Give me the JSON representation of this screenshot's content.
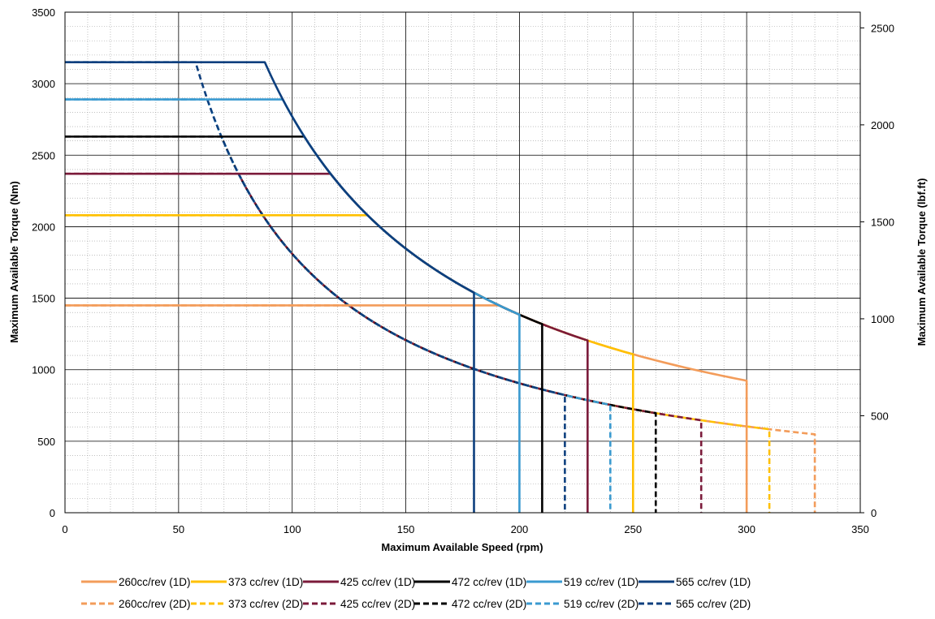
{
  "chart_data": {
    "type": "line",
    "title": "",
    "xlabel": "Maximum Available Speed (rpm)",
    "ylabel": "Maximum Available Torque (Nm)",
    "y2label": "Maximum Available Torque (lbf.ft)",
    "xlim": [
      0,
      350
    ],
    "ylim": [
      0,
      3500
    ],
    "y2lim": [
      0,
      2581
    ],
    "x_ticks": [
      "0",
      "50",
      "100",
      "150",
      "200",
      "250",
      "300",
      "350"
    ],
    "y_ticks": [
      "0",
      "500",
      "1000",
      "1500",
      "2000",
      "2500",
      "3000",
      "3500"
    ],
    "y2_ticks": [
      "0",
      "500",
      "1000",
      "1500",
      "2000",
      "2500"
    ],
    "x_tick_values": [
      0,
      50,
      100,
      150,
      200,
      250,
      300,
      350
    ],
    "y_tick_values": [
      0,
      500,
      1000,
      1500,
      2000,
      2500,
      3000,
      3500
    ],
    "y2_tick_values": [
      0,
      500,
      1000,
      1500,
      2000,
      2500
    ],
    "grid": "major solid, minor dotted",
    "legend_position": "bottom",
    "series": [
      {
        "name": "260cc/rev (1D)",
        "color": "#F39C5A",
        "style": "solid",
        "torque_max": 1450,
        "speed_max": 300,
        "power_const_nm_rpm": 277000
      },
      {
        "name": "373 cc/rev (1D)",
        "color": "#FFC000",
        "style": "solid",
        "torque_max": 2080,
        "speed_max": 250,
        "power_const_nm_rpm": 277000
      },
      {
        "name": "425 cc/rev (1D)",
        "color": "#7B1A3A",
        "style": "solid",
        "torque_max": 2370,
        "speed_max": 230,
        "power_const_nm_rpm": 277000
      },
      {
        "name": "472 cc/rev (1D)",
        "color": "#000000",
        "style": "solid",
        "torque_max": 2630,
        "speed_max": 210,
        "power_const_nm_rpm": 277000
      },
      {
        "name": "519 cc/rev (1D)",
        "color": "#3A9AD0",
        "style": "solid",
        "torque_max": 2890,
        "speed_max": 200,
        "power_const_nm_rpm": 277000
      },
      {
        "name": "565 cc/rev (1D)",
        "color": "#0D3F7E",
        "style": "solid",
        "torque_max": 3150,
        "speed_max": 180,
        "power_const_nm_rpm": 277000
      },
      {
        "name": "260cc/rev (2D)",
        "color": "#F39C5A",
        "style": "dashed",
        "torque_max": 1450,
        "speed_max": 330,
        "power_const_nm_rpm": 181000
      },
      {
        "name": "373 cc/rev (2D)",
        "color": "#FFC000",
        "style": "dashed",
        "torque_max": 2080,
        "speed_max": 310,
        "power_const_nm_rpm": 181000
      },
      {
        "name": "425 cc/rev (2D)",
        "color": "#7B1A3A",
        "style": "dashed",
        "torque_max": 2370,
        "speed_max": 280,
        "power_const_nm_rpm": 181000
      },
      {
        "name": "472 cc/rev (2D)",
        "color": "#000000",
        "style": "dashed",
        "torque_max": 2630,
        "speed_max": 260,
        "power_const_nm_rpm": 181000
      },
      {
        "name": "519 cc/rev (2D)",
        "color": "#3A9AD0",
        "style": "dashed",
        "torque_max": 2890,
        "speed_max": 240,
        "power_const_nm_rpm": 181000
      },
      {
        "name": "565 cc/rev (2D)",
        "color": "#0D3F7E",
        "style": "dashed",
        "torque_max": 3150,
        "speed_max": 220,
        "power_const_nm_rpm": 181000
      }
    ]
  }
}
